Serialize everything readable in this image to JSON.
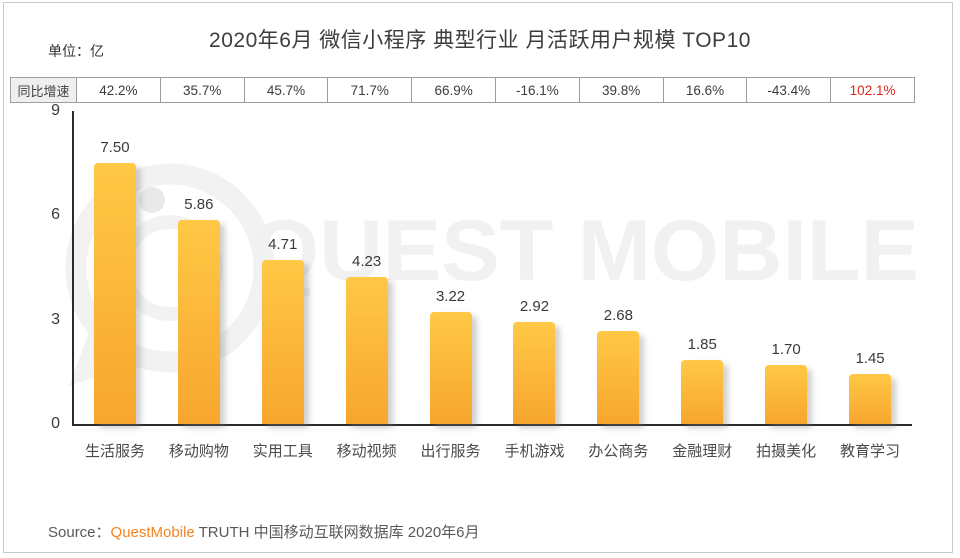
{
  "page": {
    "title": "2020年6月 微信小程序 典型行业 月活跃用户规模 TOP10",
    "unit_label": "单位：亿"
  },
  "growth_table": {
    "row_label": "同比增速",
    "values": [
      "42.2%",
      "35.7%",
      "45.7%",
      "71.7%",
      "66.9%",
      "-16.1%",
      "39.8%",
      "16.6%",
      "-43.4%",
      "102.1%"
    ],
    "highlight_index": 9,
    "highlight_color": "#e0261c"
  },
  "chart_data": {
    "type": "bar",
    "title": "2020年6月 微信小程序 典型行业 月活跃用户规模 TOP10",
    "unit": "亿",
    "categories": [
      "生活服务",
      "移动购物",
      "实用工具",
      "移动视频",
      "出行服务",
      "手机游戏",
      "办公商务",
      "金融理财",
      "拍摄美化",
      "教育学习"
    ],
    "values": [
      7.5,
      5.86,
      4.71,
      4.23,
      3.22,
      2.92,
      2.68,
      1.85,
      1.7,
      1.45
    ],
    "value_labels": [
      "7.50",
      "5.86",
      "4.71",
      "4.23",
      "3.22",
      "2.92",
      "2.68",
      "1.85",
      "1.70",
      "1.45"
    ],
    "yoy_growth": [
      "42.2%",
      "35.7%",
      "45.7%",
      "71.7%",
      "66.9%",
      "-16.1%",
      "39.8%",
      "16.6%",
      "-43.4%",
      "102.1%"
    ],
    "ylim": [
      0,
      9
    ],
    "yticks": [
      0,
      3,
      6,
      9
    ],
    "grid": false,
    "legend": "none",
    "bar_gradient_top": "#ffc845",
    "bar_gradient_bottom": "#f7a62e"
  },
  "watermark": {
    "text": "QUEST MOBILE"
  },
  "source": {
    "prefix": "Source：",
    "brand": "QuestMobile",
    "rest": " TRUTH 中国移动互联网数据库 2020年6月",
    "brand_color": "#f5831f"
  }
}
